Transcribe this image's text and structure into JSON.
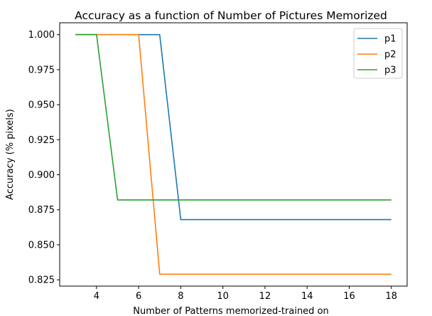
{
  "chart_data": {
    "type": "line",
    "title": "Accuracy as a function of Number of Pictures Memorized",
    "xlabel": "Number of Patterns memorized-trained on",
    "ylabel": "Accuracy (% pixels)",
    "xlim": [
      2.25,
      18.75
    ],
    "ylim": [
      0.8205,
      1.0085
    ],
    "xticks": [
      4,
      6,
      8,
      10,
      12,
      14,
      16,
      18
    ],
    "xtick_labels": [
      "4",
      "6",
      "8",
      "10",
      "12",
      "14",
      "16",
      "18"
    ],
    "yticks": [
      0.825,
      0.85,
      0.875,
      0.9,
      0.925,
      0.95,
      0.975,
      1.0
    ],
    "ytick_labels": [
      "0.825",
      "0.850",
      "0.875",
      "0.900",
      "0.925",
      "0.950",
      "0.975",
      "1.000"
    ],
    "grid": false,
    "legend_position": "top-right",
    "x": [
      3,
      4,
      5,
      6,
      7,
      8,
      9,
      10,
      11,
      12,
      13,
      14,
      15,
      16,
      17,
      18
    ],
    "series": [
      {
        "name": "p1",
        "color": "#1f77b4",
        "values": [
          1.0,
          1.0,
          1.0,
          1.0,
          1.0,
          0.868,
          0.868,
          0.868,
          0.868,
          0.868,
          0.868,
          0.868,
          0.868,
          0.868,
          0.868,
          0.868
        ]
      },
      {
        "name": "p2",
        "color": "#ff7f0e",
        "values": [
          1.0,
          1.0,
          1.0,
          1.0,
          0.829,
          0.829,
          0.829,
          0.829,
          0.829,
          0.829,
          0.829,
          0.829,
          0.829,
          0.829,
          0.829,
          0.829
        ]
      },
      {
        "name": "p3",
        "color": "#2ca02c",
        "values": [
          1.0,
          1.0,
          0.882,
          0.882,
          0.882,
          0.882,
          0.882,
          0.882,
          0.882,
          0.882,
          0.882,
          0.882,
          0.882,
          0.882,
          0.882,
          0.882
        ]
      }
    ]
  }
}
